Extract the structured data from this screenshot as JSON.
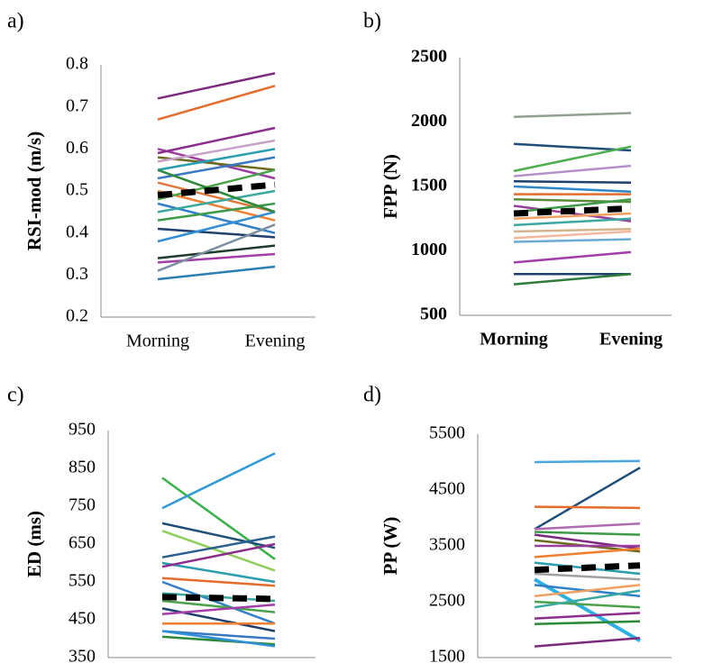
{
  "chart_data": [
    {
      "type": "line",
      "panel_label": "a)",
      "y_label": "RSI-mod (m/s)",
      "categories": [
        "Morning",
        "Evening"
      ],
      "ylim": [
        0.2,
        0.8
      ],
      "yticks": [
        0.2,
        0.3,
        0.4,
        0.5,
        0.6,
        0.7,
        0.8
      ],
      "grid": false,
      "font_weight": "normal",
      "series": [
        {
          "color": "#7b2a7e",
          "values": [
            0.72,
            0.78
          ]
        },
        {
          "color": "#e46c2c",
          "values": [
            0.67,
            0.75
          ]
        },
        {
          "color": "#9b3f9e",
          "values": [
            0.6,
            0.53
          ]
        },
        {
          "color": "#8b2d8d",
          "values": [
            0.59,
            0.65
          ]
        },
        {
          "color": "#6b6b1f",
          "values": [
            0.58,
            0.55
          ]
        },
        {
          "color": "#c9a2c9",
          "values": [
            0.57,
            0.62
          ]
        },
        {
          "color": "#2a9db0",
          "values": [
            0.55,
            0.6
          ]
        },
        {
          "color": "#3a78c2",
          "values": [
            0.53,
            0.58
          ]
        },
        {
          "color": "#e07a3a",
          "values": [
            0.52,
            0.45
          ]
        },
        {
          "color": "#f08030",
          "values": [
            0.5,
            0.43
          ]
        },
        {
          "color": "#4ca24c",
          "values": [
            0.48,
            0.55
          ]
        },
        {
          "color": "#2f7fc9",
          "values": [
            0.47,
            0.4
          ]
        },
        {
          "color": "#3aa8a0",
          "values": [
            0.45,
            0.5
          ]
        },
        {
          "color": "#3e9a48",
          "values": [
            0.43,
            0.47
          ]
        },
        {
          "color": "#1f3f6e",
          "values": [
            0.41,
            0.39
          ]
        },
        {
          "color": "#2e8fd6",
          "values": [
            0.38,
            0.45
          ]
        },
        {
          "color": "#203a2e",
          "values": [
            0.34,
            0.37
          ]
        },
        {
          "color": "#a33ea8",
          "values": [
            0.33,
            0.35
          ]
        },
        {
          "color": "#7b8fa0",
          "values": [
            0.31,
            0.42
          ]
        },
        {
          "color": "#2a7fb0",
          "values": [
            0.29,
            0.32
          ]
        },
        {
          "color": "#2e8a3a",
          "values": [
            0.55,
            0.45
          ]
        },
        {
          "color": "#000000",
          "values": [
            0.49,
            0.515
          ],
          "dash": true,
          "width": 7
        }
      ]
    },
    {
      "type": "line",
      "panel_label": "b)",
      "y_label": "FPP (N)",
      "categories": [
        "Morning",
        "Evening"
      ],
      "ylim": [
        500,
        2500
      ],
      "yticks": [
        500,
        1000,
        1500,
        2000,
        2500
      ],
      "grid": false,
      "font_weight": "bold",
      "series": [
        {
          "color": "#8fa08f",
          "values": [
            2040,
            2070
          ]
        },
        {
          "color": "#1f4e79",
          "values": [
            1830,
            1780
          ]
        },
        {
          "color": "#4cae4c",
          "values": [
            1620,
            1810
          ]
        },
        {
          "color": "#b58fc9",
          "values": [
            1580,
            1660
          ]
        },
        {
          "color": "#1f3f6e",
          "values": [
            1540,
            1530
          ]
        },
        {
          "color": "#2f86c9",
          "values": [
            1500,
            1460
          ]
        },
        {
          "color": "#e46c2c",
          "values": [
            1440,
            1440
          ]
        },
        {
          "color": "#5a8a3a",
          "values": [
            1400,
            1380
          ]
        },
        {
          "color": "#9b3f9e",
          "values": [
            1350,
            1230
          ]
        },
        {
          "color": "#3e9a48",
          "values": [
            1300,
            1400
          ]
        },
        {
          "color": "#f0a060",
          "values": [
            1250,
            1290
          ]
        },
        {
          "color": "#3aa8a0",
          "values": [
            1200,
            1250
          ]
        },
        {
          "color": "#d2b48c",
          "values": [
            1150,
            1170
          ]
        },
        {
          "color": "#f4b8a0",
          "values": [
            1100,
            1150
          ]
        },
        {
          "color": "#6aaad6",
          "values": [
            1070,
            1090
          ]
        },
        {
          "color": "#a33ea8",
          "values": [
            910,
            990
          ]
        },
        {
          "color": "#1f3f6e",
          "values": [
            820,
            820
          ]
        },
        {
          "color": "#2e7d3a",
          "values": [
            740,
            820
          ]
        },
        {
          "color": "#000000",
          "values": [
            1290,
            1330
          ],
          "dash": true,
          "width": 7
        }
      ]
    },
    {
      "type": "line",
      "panel_label": "c)",
      "y_label": "ED (ms)",
      "categories": [
        null,
        null
      ],
      "ylim": [
        350,
        950
      ],
      "yticks": [
        350,
        450,
        550,
        650,
        750,
        850,
        950
      ],
      "grid": false,
      "font_weight": "normal",
      "series": [
        {
          "color": "#3ab04a",
          "values": [
            825,
            610
          ]
        },
        {
          "color": "#2f9ad6",
          "values": [
            745,
            890
          ]
        },
        {
          "color": "#1f4e79",
          "values": [
            705,
            640
          ]
        },
        {
          "color": "#8fce5a",
          "values": [
            685,
            580
          ]
        },
        {
          "color": "#2a5f8f",
          "values": [
            615,
            670
          ]
        },
        {
          "color": "#2a9db0",
          "values": [
            600,
            550
          ]
        },
        {
          "color": "#8b2d8d",
          "values": [
            590,
            650
          ]
        },
        {
          "color": "#e46c2c",
          "values": [
            560,
            540
          ]
        },
        {
          "color": "#2f7fc9",
          "values": [
            550,
            440
          ]
        },
        {
          "color": "#3aa8a0",
          "values": [
            520,
            500
          ]
        },
        {
          "color": "#4ca24c",
          "values": [
            500,
            470
          ]
        },
        {
          "color": "#1f3f6e",
          "values": [
            480,
            420
          ]
        },
        {
          "color": "#a33ea8",
          "values": [
            465,
            490
          ]
        },
        {
          "color": "#f08030",
          "values": [
            440,
            440
          ]
        },
        {
          "color": "#3a78c2",
          "values": [
            420,
            400
          ]
        },
        {
          "color": "#2e8a3a",
          "values": [
            405,
            385
          ]
        },
        {
          "color": "#2e8fd6",
          "values": [
            420,
            380
          ]
        },
        {
          "color": "#000000",
          "values": [
            510,
            505
          ],
          "dash": true,
          "width": 7
        }
      ]
    },
    {
      "type": "line",
      "panel_label": "d)",
      "y_label": "PP (W)",
      "categories": [
        null,
        null
      ],
      "ylim": [
        1500,
        5500
      ],
      "yticks": [
        1500,
        2500,
        3500,
        4500,
        5500
      ],
      "grid": false,
      "font_weight": "normal",
      "series": [
        {
          "color": "#4aa8e0",
          "values": [
            5000,
            5020
          ]
        },
        {
          "color": "#1f4e79",
          "values": [
            3800,
            4900
          ]
        },
        {
          "color": "#e46c2c",
          "values": [
            4200,
            4180
          ]
        },
        {
          "color": "#b06ab0",
          "values": [
            3800,
            3900
          ]
        },
        {
          "color": "#3e9a48",
          "values": [
            3750,
            3700
          ]
        },
        {
          "color": "#7b2a7e",
          "values": [
            3700,
            3450
          ]
        },
        {
          "color": "#6b6b1f",
          "values": [
            3600,
            3400
          ]
        },
        {
          "color": "#9b3f9e",
          "values": [
            3500,
            3500
          ]
        },
        {
          "color": "#f08030",
          "values": [
            3300,
            3450
          ]
        },
        {
          "color": "#2a9db0",
          "values": [
            3200,
            3000
          ]
        },
        {
          "color": "#a0a0a0",
          "values": [
            3000,
            2900
          ]
        },
        {
          "color": "#2fb0e0",
          "values": [
            2900,
            1800
          ],
          "width": 4
        },
        {
          "color": "#2f7fc9",
          "values": [
            2800,
            2600
          ]
        },
        {
          "color": "#f0a060",
          "values": [
            2600,
            2800
          ]
        },
        {
          "color": "#4ca24c",
          "values": [
            2500,
            2400
          ]
        },
        {
          "color": "#3aa8a0",
          "values": [
            2400,
            2700
          ]
        },
        {
          "color": "#8b2d8d",
          "values": [
            2200,
            2300
          ]
        },
        {
          "color": "#2e8a3a",
          "values": [
            2100,
            2150
          ]
        },
        {
          "color": "#7b2a7e",
          "values": [
            1700,
            1850
          ]
        },
        {
          "color": "#000000",
          "values": [
            3070,
            3150
          ],
          "dash": true,
          "width": 7
        }
      ]
    }
  ]
}
